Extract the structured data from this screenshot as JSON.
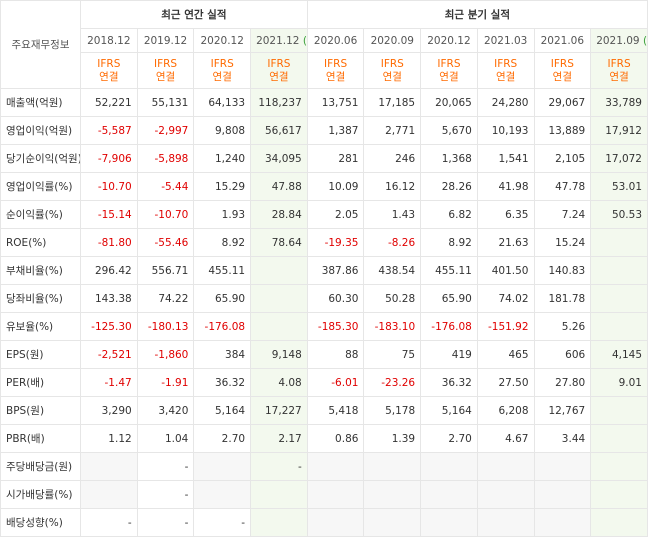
{
  "header": {
    "title": "주요재무정보",
    "groups": [
      {
        "label": "최근 연간 실적",
        "columns": [
          {
            "period": "2018.12",
            "standard": "IFRS",
            "scope": "연결"
          },
          {
            "period": "2019.12",
            "standard": "IFRS",
            "scope": "연결"
          },
          {
            "period": "2020.12",
            "standard": "IFRS",
            "scope": "연결"
          },
          {
            "period": "2021.12",
            "estimate": "(E)",
            "standard": "IFRS",
            "scope": "연결"
          }
        ]
      },
      {
        "label": "최근 분기 실적",
        "columns": [
          {
            "period": "2020.06",
            "standard": "IFRS",
            "scope": "연결"
          },
          {
            "period": "2020.09",
            "standard": "IFRS",
            "scope": "연결"
          },
          {
            "period": "2020.12",
            "standard": "IFRS",
            "scope": "연결"
          },
          {
            "period": "2021.03",
            "standard": "IFRS",
            "scope": "연결"
          },
          {
            "period": "2021.06",
            "standard": "IFRS",
            "scope": "연결"
          },
          {
            "period": "2021.09",
            "estimate": "(E)",
            "standard": "IFRS",
            "scope": "연결"
          }
        ]
      }
    ]
  },
  "sections": [
    [
      {
        "label": "매출액(억원)",
        "values": [
          "52,221",
          "55,131",
          "64,133",
          "118,237",
          "13,751",
          "17,185",
          "20,065",
          "24,280",
          "29,067",
          "33,789"
        ]
      },
      {
        "label": "영업이익(억원)",
        "values": [
          "-5,587",
          "-2,997",
          "9,808",
          "56,617",
          "1,387",
          "2,771",
          "5,670",
          "10,193",
          "13,889",
          "17,912"
        ]
      },
      {
        "label": "당기순이익(억원)",
        "values": [
          "-7,906",
          "-5,898",
          "1,240",
          "34,095",
          "281",
          "246",
          "1,368",
          "1,541",
          "2,105",
          "17,072"
        ]
      }
    ],
    [
      {
        "label": "영업이익률(%)",
        "values": [
          "-10.70",
          "-5.44",
          "15.29",
          "47.88",
          "10.09",
          "16.12",
          "28.26",
          "41.98",
          "47.78",
          "53.01"
        ]
      },
      {
        "label": "순이익률(%)",
        "values": [
          "-15.14",
          "-10.70",
          "1.93",
          "28.84",
          "2.05",
          "1.43",
          "6.82",
          "6.35",
          "7.24",
          "50.53"
        ]
      },
      {
        "label": "ROE(%)",
        "values": [
          "-81.80",
          "-55.46",
          "8.92",
          "78.64",
          "-19.35",
          "-8.26",
          "8.92",
          "21.63",
          "15.24",
          null
        ]
      }
    ],
    [
      {
        "label": "부채비율(%)",
        "values": [
          "296.42",
          "556.71",
          "455.11",
          null,
          "387.86",
          "438.54",
          "455.11",
          "401.50",
          "140.83",
          null
        ]
      },
      {
        "label": "당좌비율(%)",
        "values": [
          "143.38",
          "74.22",
          "65.90",
          null,
          "60.30",
          "50.28",
          "65.90",
          "74.02",
          "181.78",
          null
        ]
      },
      {
        "label": "유보율(%)",
        "values": [
          "-125.30",
          "-180.13",
          "-176.08",
          null,
          "-185.30",
          "-183.10",
          "-176.08",
          "-151.92",
          "5.26",
          null
        ]
      }
    ],
    [
      {
        "label": "EPS(원)",
        "values": [
          "-2,521",
          "-1,860",
          "384",
          "9,148",
          "88",
          "75",
          "419",
          "465",
          "606",
          "4,145"
        ]
      },
      {
        "label": "PER(배)",
        "values": [
          "-1.47",
          "-1.91",
          "36.32",
          "4.08",
          "-6.01",
          "-23.26",
          "36.32",
          "27.50",
          "27.80",
          "9.01"
        ]
      },
      {
        "label": "BPS(원)",
        "values": [
          "3,290",
          "3,420",
          "5,164",
          "17,227",
          "5,418",
          "5,178",
          "5,164",
          "6,208",
          "12,767",
          null
        ]
      },
      {
        "label": "PBR(배)",
        "values": [
          "1.12",
          "1.04",
          "2.70",
          "2.17",
          "0.86",
          "1.39",
          "2.70",
          "4.67",
          "3.44",
          null
        ]
      }
    ],
    [
      {
        "label": "주당배당금(원)",
        "values": [
          null,
          "-",
          null,
          "-",
          null,
          null,
          null,
          null,
          null,
          null
        ]
      },
      {
        "label": "시가배당률(%)",
        "values": [
          null,
          "-",
          null,
          null,
          null,
          null,
          null,
          null,
          null,
          null
        ]
      },
      {
        "label": "배당성향(%)",
        "values": [
          "-",
          "-",
          "-",
          null,
          null,
          null,
          null,
          null,
          null,
          null
        ]
      }
    ]
  ]
}
